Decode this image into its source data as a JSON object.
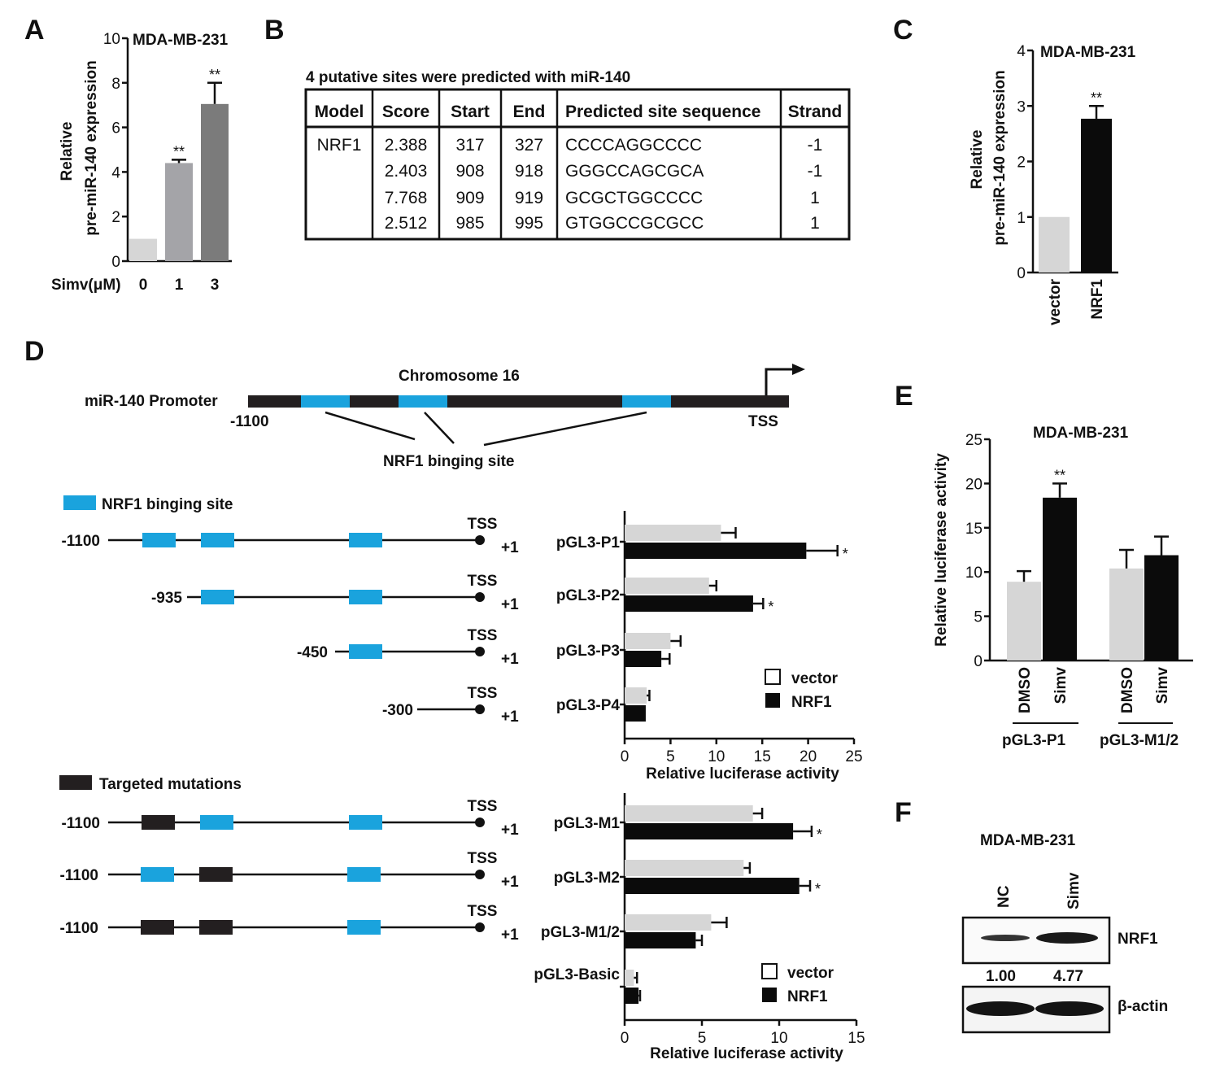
{
  "panels": [
    "A",
    "B",
    "C",
    "D",
    "E",
    "F"
  ],
  "colors": {
    "grey_light": "#d6d6d6",
    "grey_mid": "#a4a4a8",
    "grey_dark": "#7b7b7b",
    "black": "#0b0b0b",
    "site_blue": "#1aa3dd",
    "mut_black": "#231f20"
  },
  "panelA": {
    "title": "MDA-MB-231",
    "ylabel_line1": "Relative",
    "ylabel_line2": "pre-miR-140 expression",
    "xlabel_prefix": "Simv(μM)",
    "chart_data": {
      "type": "bar",
      "categories": [
        "0",
        "1",
        "3"
      ],
      "values": [
        1.0,
        4.4,
        7.05
      ],
      "errors": [
        0,
        0.15,
        0.95
      ],
      "significance": [
        "",
        "**",
        "**"
      ],
      "ylim": [
        0,
        10
      ],
      "yticks": [
        "0",
        "2",
        "4",
        "6",
        "8",
        "10"
      ]
    }
  },
  "panelB": {
    "caption": "4 putative sites were predicted with miR-140",
    "headers": [
      "Model",
      "Score",
      "Start",
      "End",
      "Predicted site sequence",
      "Strand"
    ],
    "rows": [
      [
        "NRF1",
        "2.388",
        "317",
        "327",
        "CCCCAGGCCCC",
        "-1"
      ],
      [
        "",
        "2.403",
        "908",
        "918",
        "GGGCCAGCGCA",
        "-1"
      ],
      [
        "",
        "7.768",
        "909",
        "919",
        "GCGCTGGCCCC",
        "1"
      ],
      [
        "",
        "2.512",
        "985",
        "995",
        "GTGGCCGCGCC",
        "1"
      ]
    ]
  },
  "panelC": {
    "title": "MDA-MB-231",
    "ylabel_line1": "Relative",
    "ylabel_line2": "pre-miR-140 expression",
    "chart_data": {
      "type": "bar",
      "categories": [
        "vector",
        "NRF1"
      ],
      "values": [
        1.0,
        2.77
      ],
      "errors": [
        0,
        0.23
      ],
      "significance": [
        "",
        "**"
      ],
      "ylim": [
        0,
        4
      ],
      "yticks": [
        "0",
        "1",
        "2",
        "3",
        "4"
      ]
    }
  },
  "panelD": {
    "chromosome": "Chromosome 16",
    "promoter_label": "miR-140 Promoter",
    "start_label": "-1100",
    "tss_label": "TSS",
    "binding_caption": "NRF1 binging site",
    "legend_site": "NRF1 binging site",
    "legend_mut": "Targeted mutations",
    "plus_one": "+1",
    "constructs_top": [
      {
        "start": "-1100",
        "name": "pGL3-P1"
      },
      {
        "start": "-935",
        "name": "pGL3-P2"
      },
      {
        "start": "-450",
        "name": "pGL3-P3"
      },
      {
        "start": "-300",
        "name": "pGL3-P4"
      }
    ],
    "constructs_bottom": [
      {
        "start": "-1100",
        "name": "pGL3-M1"
      },
      {
        "start": "-1100",
        "name": "pGL3-M2"
      },
      {
        "start": "-1100",
        "name": "pGL3-M1/2"
      }
    ],
    "chart_top": {
      "type": "bar",
      "orientation": "horizontal",
      "categories": [
        "pGL3-P1",
        "pGL3-P2",
        "pGL3-P3",
        "pGL3-P4"
      ],
      "series": [
        {
          "name": "vector",
          "values": [
            10.5,
            9.2,
            5.0,
            2.4
          ],
          "errors": [
            1.6,
            0.8,
            1.1,
            0.3
          ]
        },
        {
          "name": "NRF1",
          "values": [
            19.8,
            14.0,
            4.0,
            2.3
          ],
          "errors": [
            3.4,
            1.1,
            0.9,
            0
          ]
        }
      ],
      "significance": [
        "*",
        "*",
        "",
        ""
      ],
      "xlim": [
        0,
        25
      ],
      "xticks": [
        "0",
        "5",
        "10",
        "15",
        "20",
        "25"
      ],
      "xlabel": "Relative luciferase activity"
    },
    "chart_bottom": {
      "type": "bar",
      "orientation": "horizontal",
      "categories": [
        "pGL3-M1",
        "pGL3-M2",
        "pGL3-M1/2",
        "pGL3-Basic"
      ],
      "series": [
        {
          "name": "vector",
          "values": [
            8.3,
            7.7,
            5.6,
            0.6
          ],
          "errors": [
            0.6,
            0.4,
            1.0,
            0.2
          ]
        },
        {
          "name": "NRF1",
          "values": [
            10.9,
            11.3,
            4.6,
            0.9
          ],
          "errors": [
            1.2,
            0.7,
            0.4,
            0.1
          ]
        }
      ],
      "significance": [
        "*",
        "*",
        "",
        ""
      ],
      "xlim": [
        0,
        15
      ],
      "xticks": [
        "0",
        "5",
        "10",
        "15"
      ],
      "xlabel": "Relative luciferase activity"
    }
  },
  "panelE": {
    "title": "MDA-MB-231",
    "ylabel": "Relative luciferase activity",
    "group_labels": [
      "pGL3-P1",
      "pGL3-M1/2"
    ],
    "chart_data": {
      "type": "bar",
      "categories": [
        "DMSO",
        "Simv",
        "DMSO",
        "Simv"
      ],
      "values": [
        8.9,
        18.4,
        10.4,
        11.9
      ],
      "errors": [
        1.2,
        1.6,
        2.1,
        2.1
      ],
      "significance": [
        "",
        "**",
        "",
        ""
      ],
      "ylim": [
        0,
        25
      ],
      "yticks": [
        "0",
        "5",
        "10",
        "15",
        "20",
        "25"
      ]
    }
  },
  "panelF": {
    "title": "MDA-MB-231",
    "lanes": [
      "NC",
      "Simv"
    ],
    "band1": "NRF1",
    "band2": "β-actin",
    "quant": [
      "1.00",
      "4.77"
    ]
  }
}
